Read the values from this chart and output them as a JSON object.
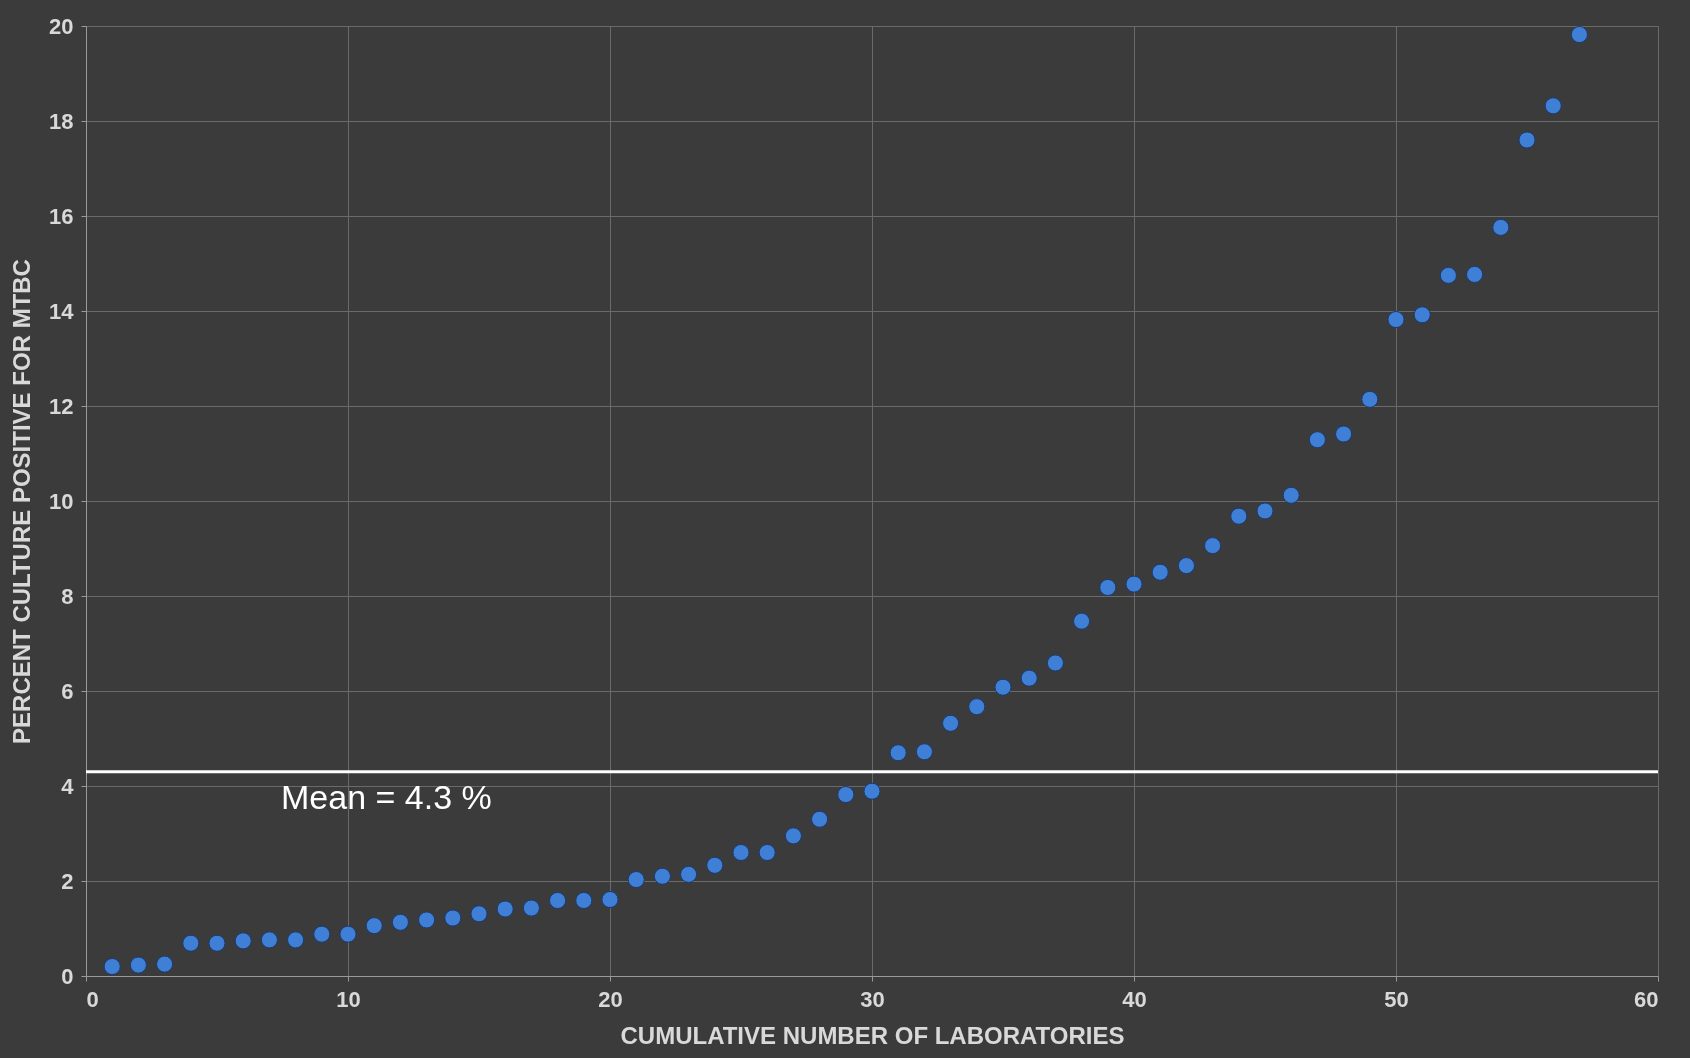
{
  "chart_data": {
    "type": "scatter",
    "xlabel": "CUMULATIVE NUMBER OF LABORATORIES",
    "ylabel": "PERCENT CULTURE POSITIVE   FOR MTBC",
    "x": [
      1,
      2,
      3,
      4,
      5,
      6,
      7,
      8,
      9,
      10,
      11,
      12,
      13,
      14,
      15,
      16,
      17,
      18,
      19,
      20,
      21,
      22,
      23,
      24,
      25,
      26,
      27,
      28,
      29,
      30,
      31,
      32,
      33,
      34,
      35,
      36,
      37,
      38,
      39,
      40,
      41,
      42,
      43,
      44,
      45,
      46,
      47,
      48,
      49,
      50,
      51,
      52,
      53,
      54,
      55,
      56,
      57
    ],
    "series": [
      {
        "color": "#3f7fd6",
        "values": [
          0.2,
          0.23,
          0.25,
          0.69,
          0.69,
          0.74,
          0.76,
          0.76,
          0.88,
          0.88,
          1.06,
          1.13,
          1.18,
          1.22,
          1.31,
          1.41,
          1.43,
          1.59,
          1.59,
          1.61,
          2.03,
          2.1,
          2.14,
          2.33,
          2.6,
          2.6,
          2.95,
          3.3,
          3.82,
          3.89,
          4.7,
          4.72,
          5.32,
          5.67,
          6.08,
          6.27,
          6.59,
          7.47,
          8.18,
          8.25,
          8.5,
          8.64,
          9.06,
          9.68,
          9.79,
          10.12,
          11.29,
          11.41,
          12.14,
          13.82,
          13.92,
          14.75,
          14.77,
          15.76,
          17.6,
          18.32,
          19.82
        ]
      }
    ],
    "xlim": [
      0,
      60
    ],
    "xticks": [
      0,
      10,
      20,
      30,
      40,
      50,
      60
    ],
    "ylim": [
      0,
      20
    ],
    "yticks": [
      0,
      2,
      4,
      6,
      8,
      10,
      12,
      14,
      16,
      18,
      20
    ],
    "ref_lines": [
      {
        "axis": "y",
        "value": 4.3,
        "label": "Mean = 4.3 %",
        "color": "#ffffff"
      }
    ],
    "grid": true,
    "marker": "circle"
  }
}
